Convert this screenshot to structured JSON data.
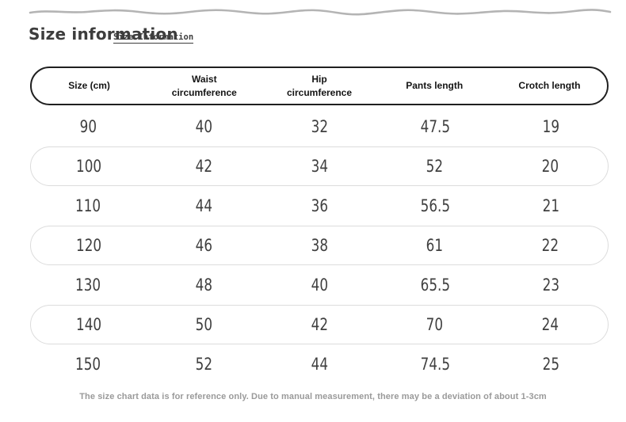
{
  "header": {
    "title": "Size information",
    "subtitle": "Size Information"
  },
  "table": {
    "columns": [
      "Size (cm)",
      "Waist circumference",
      "Hip circumference",
      "Pants length",
      "Crotch length"
    ],
    "rows": [
      [
        "90",
        "40",
        "32",
        "47.5",
        "19"
      ],
      [
        "100",
        "42",
        "34",
        "52",
        "20"
      ],
      [
        "110",
        "44",
        "36",
        "56.5",
        "21"
      ],
      [
        "120",
        "46",
        "38",
        "61",
        "22"
      ],
      [
        "130",
        "48",
        "40",
        "65.5",
        "23"
      ],
      [
        "140",
        "50",
        "42",
        "70",
        "24"
      ],
      [
        "150",
        "52",
        "44",
        "74.5",
        "25"
      ]
    ]
  },
  "footnote": "The size chart data is for reference only. Due to manual measurement, there may be a deviation of about 1-3cm",
  "colors": {
    "title": "#3d3d3d",
    "header_border": "#1f1f1f",
    "row_border": "#dcdcdc",
    "number": "#3f3f3f",
    "footnote": "#9a9a9a",
    "wave": "#b4b4b4"
  }
}
